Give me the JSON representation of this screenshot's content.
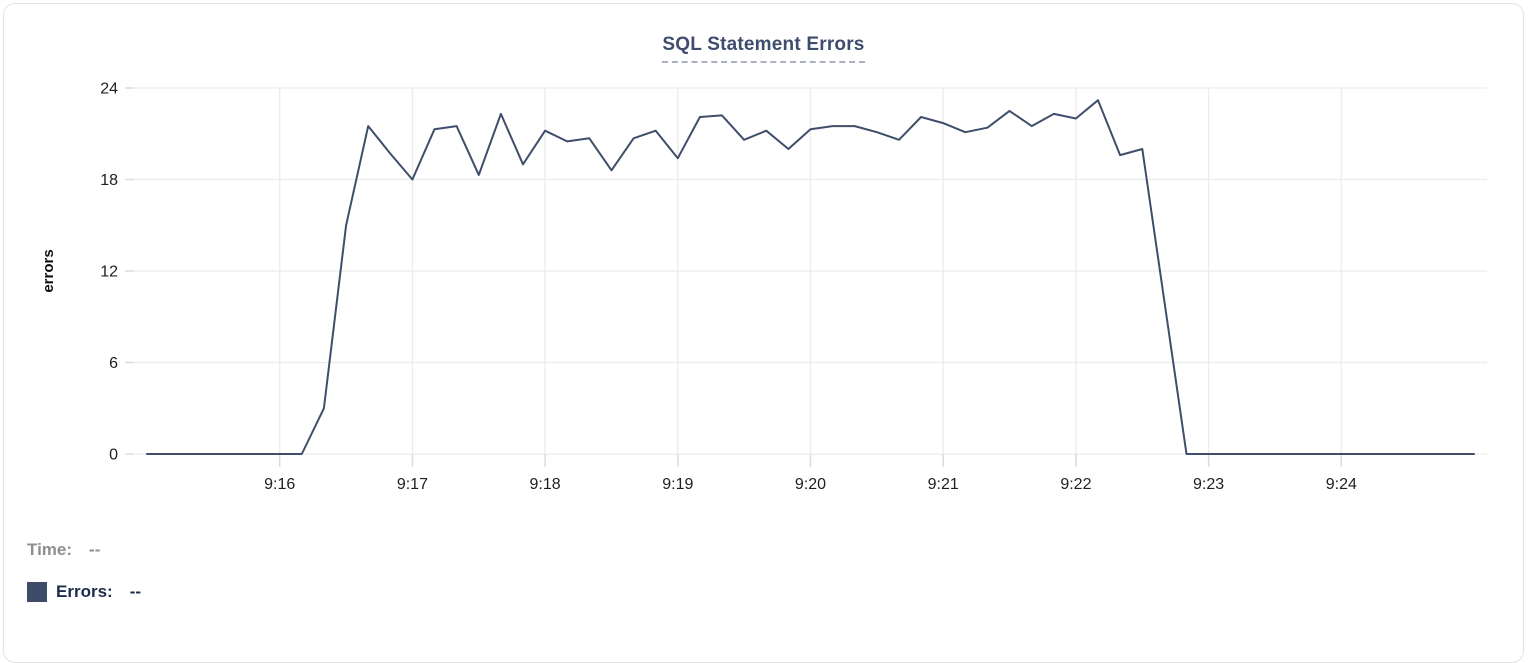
{
  "chart": {
    "title": "SQL Statement Errors",
    "colors": {
      "line": "#3f4e6b",
      "grid": "#ececec",
      "tick_stub": "#dcdcdc",
      "tick_text": "#202020",
      "axis_title_text": "#111111",
      "title_text": "#3e4d6e",
      "title_underline": "#a9b1c2"
    }
  },
  "hover_readout": {
    "time_label": "Time:",
    "time_value": "--",
    "time_color": "#8e8e8e",
    "errors_label": "Errors:",
    "errors_value": "--",
    "errors_color": "#1d2c4e",
    "swatch_color": "#3d4b66"
  },
  "chart_data": {
    "type": "line",
    "title": "SQL Statement Errors",
    "xlabel": "",
    "ylabel": "errors",
    "ylim": [
      0,
      24
    ],
    "y_ticks": [
      0,
      6,
      12,
      18,
      24
    ],
    "x_tick_labels": [
      "9:16",
      "9:17",
      "9:18",
      "9:19",
      "9:20",
      "9:21",
      "9:22",
      "9:23",
      "9:24"
    ],
    "x_start": "9:15:00",
    "x_end": "9:25:00",
    "interval_seconds": 10,
    "grid": true,
    "legend_position": "none",
    "series": [
      {
        "name": "Errors",
        "color": "#3f4e6b",
        "points": [
          [
            "9:15:00",
            0
          ],
          [
            "9:15:10",
            0
          ],
          [
            "9:15:20",
            0
          ],
          [
            "9:15:30",
            0
          ],
          [
            "9:15:40",
            0
          ],
          [
            "9:15:50",
            0
          ],
          [
            "9:16:00",
            0
          ],
          [
            "9:16:10",
            0
          ],
          [
            "9:16:20",
            3
          ],
          [
            "9:16:30",
            15
          ],
          [
            "9:16:40",
            21.5
          ],
          [
            "9:16:50",
            19.7
          ],
          [
            "9:17:00",
            18
          ],
          [
            "9:17:10",
            21.3
          ],
          [
            "9:17:20",
            21.5
          ],
          [
            "9:17:30",
            18.3
          ],
          [
            "9:17:40",
            22.3
          ],
          [
            "9:17:50",
            19
          ],
          [
            "9:18:00",
            21.2
          ],
          [
            "9:18:10",
            20.5
          ],
          [
            "9:18:20",
            20.7
          ],
          [
            "9:18:30",
            18.6
          ],
          [
            "9:18:40",
            20.7
          ],
          [
            "9:18:50",
            21.2
          ],
          [
            "9:19:00",
            19.4
          ],
          [
            "9:19:10",
            22.1
          ],
          [
            "9:19:20",
            22.2
          ],
          [
            "9:19:30",
            20.6
          ],
          [
            "9:19:40",
            21.2
          ],
          [
            "9:19:50",
            20
          ],
          [
            "9:20:00",
            21.3
          ],
          [
            "9:20:10",
            21.5
          ],
          [
            "9:20:20",
            21.5
          ],
          [
            "9:20:30",
            21.1
          ],
          [
            "9:20:40",
            20.6
          ],
          [
            "9:20:50",
            22.1
          ],
          [
            "9:21:00",
            21.7
          ],
          [
            "9:21:10",
            21.1
          ],
          [
            "9:21:20",
            21.4
          ],
          [
            "9:21:30",
            22.5
          ],
          [
            "9:21:40",
            21.5
          ],
          [
            "9:21:50",
            22.3
          ],
          [
            "9:22:00",
            22
          ],
          [
            "9:22:10",
            23.2
          ],
          [
            "9:22:20",
            19.6
          ],
          [
            "9:22:30",
            20
          ],
          [
            "9:22:40",
            10
          ],
          [
            "9:22:50",
            0
          ],
          [
            "9:23:00",
            0
          ],
          [
            "9:23:10",
            0
          ],
          [
            "9:23:20",
            0
          ],
          [
            "9:23:30",
            0
          ],
          [
            "9:23:40",
            0
          ],
          [
            "9:23:50",
            0
          ],
          [
            "9:24:00",
            0
          ],
          [
            "9:24:10",
            0
          ],
          [
            "9:24:20",
            0
          ],
          [
            "9:24:30",
            0
          ],
          [
            "9:24:40",
            0
          ],
          [
            "9:24:50",
            0
          ],
          [
            "9:25:00",
            0
          ]
        ]
      }
    ]
  }
}
